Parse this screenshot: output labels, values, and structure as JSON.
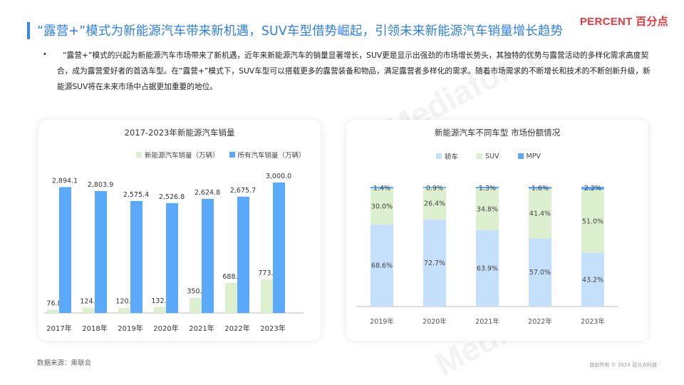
{
  "header": {
    "title": "“露营+”模式为新能源汽车带来新机遇，SUV车型借势崛起，引领未来新能源汽车销量增长趋势",
    "logo": "PERCENT 百分点",
    "watermark": "Mediaforce"
  },
  "intro": {
    "bullet": "•",
    "text": "“露营+”模式的兴起为新能源汽车市场带来了新机遇，近年来新能源汽车的销量显著增长，SUV更是显示出强劲的市场增长势头，其独特的优势与露营活动的多样化需求高度契合，成为露营爱好者的首选车型。在“露营+”模式下，SUV车型可以搭载更多的露营装备和物品，满足露营者多样化的需求。随着市场需求的不断增长和技术的不断创新升级，新能源SUV将在未来市场中占据更加重要的地位。"
  },
  "footer": {
    "source": "数据来源：乘联会",
    "copyright": "版权所有 © 2024 百分点科技"
  },
  "colors": {
    "accent": "#2f7ee6",
    "nev_bar": "#dcefcf",
    "total_bar": "#5aa9fb",
    "sedan": "#c5e0fb",
    "suv": "#dcefcf",
    "mpv": "#5aa9fb"
  },
  "chart_data": [
    {
      "type": "bar",
      "title": "2017-2023年新能源汽车销量",
      "categories": [
        "2017年",
        "2018年",
        "2019年",
        "2020年",
        "2021年",
        "2022年",
        "2023年"
      ],
      "series": [
        {
          "name": "新能源汽车销量（万辆）",
          "values": [
            76.8,
            124.7,
            120.6,
            132.3,
            350.7,
            688.7,
            773.6
          ],
          "labels": [
            "76.8",
            "124.7",
            "120.6",
            "132.3",
            "350.7",
            "688.7",
            "773.6"
          ]
        },
        {
          "name": "所有汽车销量（万辆）",
          "values": [
            2894.1,
            2803.9,
            2575.4,
            2526.8,
            2624.8,
            2675.7,
            3000.0
          ],
          "labels": [
            "2,894.1",
            "2,803.9",
            "2,575.4",
            "2,526.8",
            "2,624.8",
            "2,675.7",
            "3,000.0"
          ]
        }
      ],
      "ylim": [
        0,
        3000
      ],
      "grid": false,
      "legend": "top-right"
    },
    {
      "type": "bar",
      "stacked": true,
      "percent": true,
      "title": "新能源汽车不同车型 市场份额情况",
      "categories": [
        "2019年",
        "2020年",
        "2021年",
        "2022年",
        "2023年"
      ],
      "series": [
        {
          "name": "轿车",
          "values": [
            68.6,
            72.7,
            63.9,
            57.0,
            43.2
          ],
          "labels": [
            "68.6%",
            "72.7%",
            "63.9%",
            "57.0%",
            "43.2%"
          ]
        },
        {
          "name": "SUV",
          "values": [
            30.0,
            26.4,
            34.8,
            41.4,
            51.0
          ],
          "labels": [
            "30.0%",
            "26.4%",
            "34.8%",
            "41.4%",
            "51.0%"
          ]
        },
        {
          "name": "MPV",
          "values": [
            1.4,
            0.9,
            1.3,
            1.6,
            2.2
          ],
          "labels": [
            "1.4%",
            "0.9%",
            "1.3%",
            "1.6%",
            "2.2%"
          ]
        }
      ],
      "ylim": [
        0,
        100
      ],
      "grid": false,
      "legend": "top"
    }
  ]
}
